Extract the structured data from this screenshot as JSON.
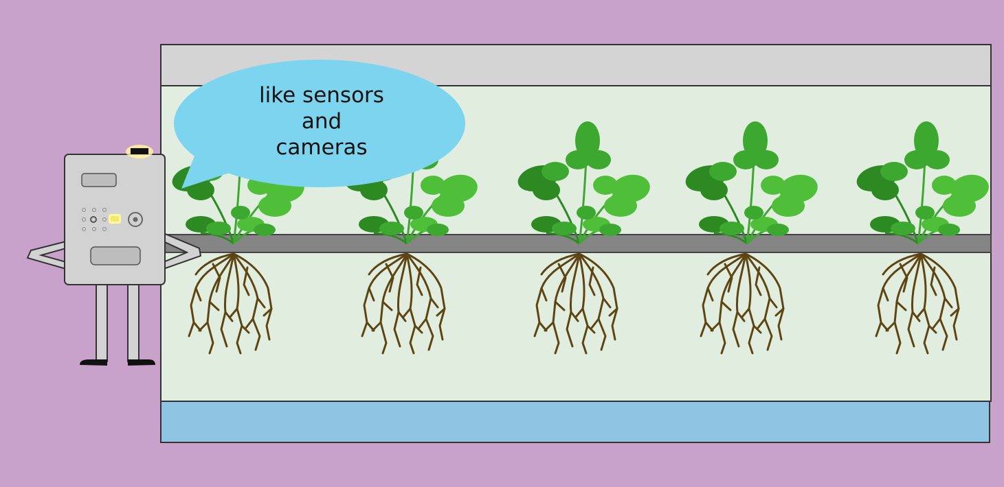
{
  "speech_bubble": {
    "lines": [
      "like sensors",
      "and",
      "cameras"
    ]
  },
  "colors": {
    "background": "#c8a2cb",
    "top_panel": "#d4d4d4",
    "grow_area": "#e1eedf",
    "channel": "#858585",
    "water": "#8fc5e3",
    "bubble": "#7dd4ef",
    "leaf_dark": "#2d8a23",
    "leaf_mid": "#3da82f",
    "leaf_light": "#4fbf3a",
    "root": "#5d4513",
    "robot_body": "#d2d2d2",
    "robot_light": "#fff7a0"
  },
  "plants": [
    {
      "name": "plant-1"
    },
    {
      "name": "plant-2"
    },
    {
      "name": "plant-3"
    },
    {
      "name": "plant-4"
    },
    {
      "name": "plant-5"
    }
  ]
}
